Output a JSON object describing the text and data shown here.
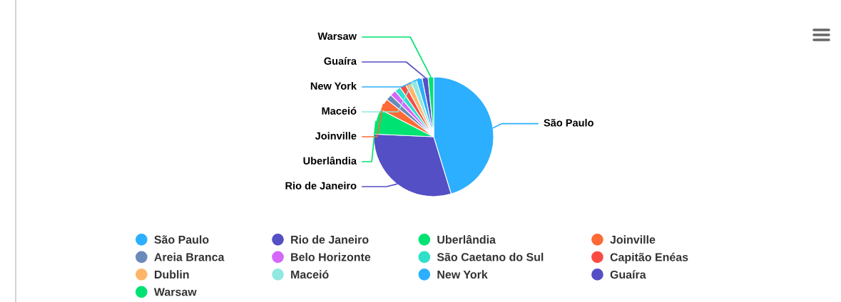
{
  "chart_data": {
    "type": "pie",
    "categories": [
      "São Paulo",
      "Rio de Janeiro",
      "Uberlândia",
      "Joinville",
      "Areia Branca",
      "Belo Horizonte",
      "São Caetano do Sul",
      "Capitão Enéas",
      "Dublin",
      "Maceió",
      "New York",
      "Guaíra",
      "Warsaw"
    ],
    "values": [
      45.3,
      30.4,
      6.8,
      3.2,
      1.6,
      1.6,
      1.6,
      1.6,
      1.6,
      1.6,
      1.6,
      1.6,
      1.5
    ],
    "colors": [
      "#2caffe",
      "#544fc5",
      "#00e272",
      "#fe6a35",
      "#6b8abc",
      "#d568fb",
      "#2ee0ca",
      "#fa4b42",
      "#feb56a",
      "#91e8e1",
      "#2caffe",
      "#544fc5",
      "#00e272"
    ],
    "value_labels": [
      "São Paulo",
      "Rio de Janeiro",
      "Uberlândia",
      "Joinville",
      null,
      null,
      null,
      null,
      null,
      "Maceió",
      "New York",
      "Guaíra",
      "Warsaw"
    ],
    "legend": "bottom"
  }
}
